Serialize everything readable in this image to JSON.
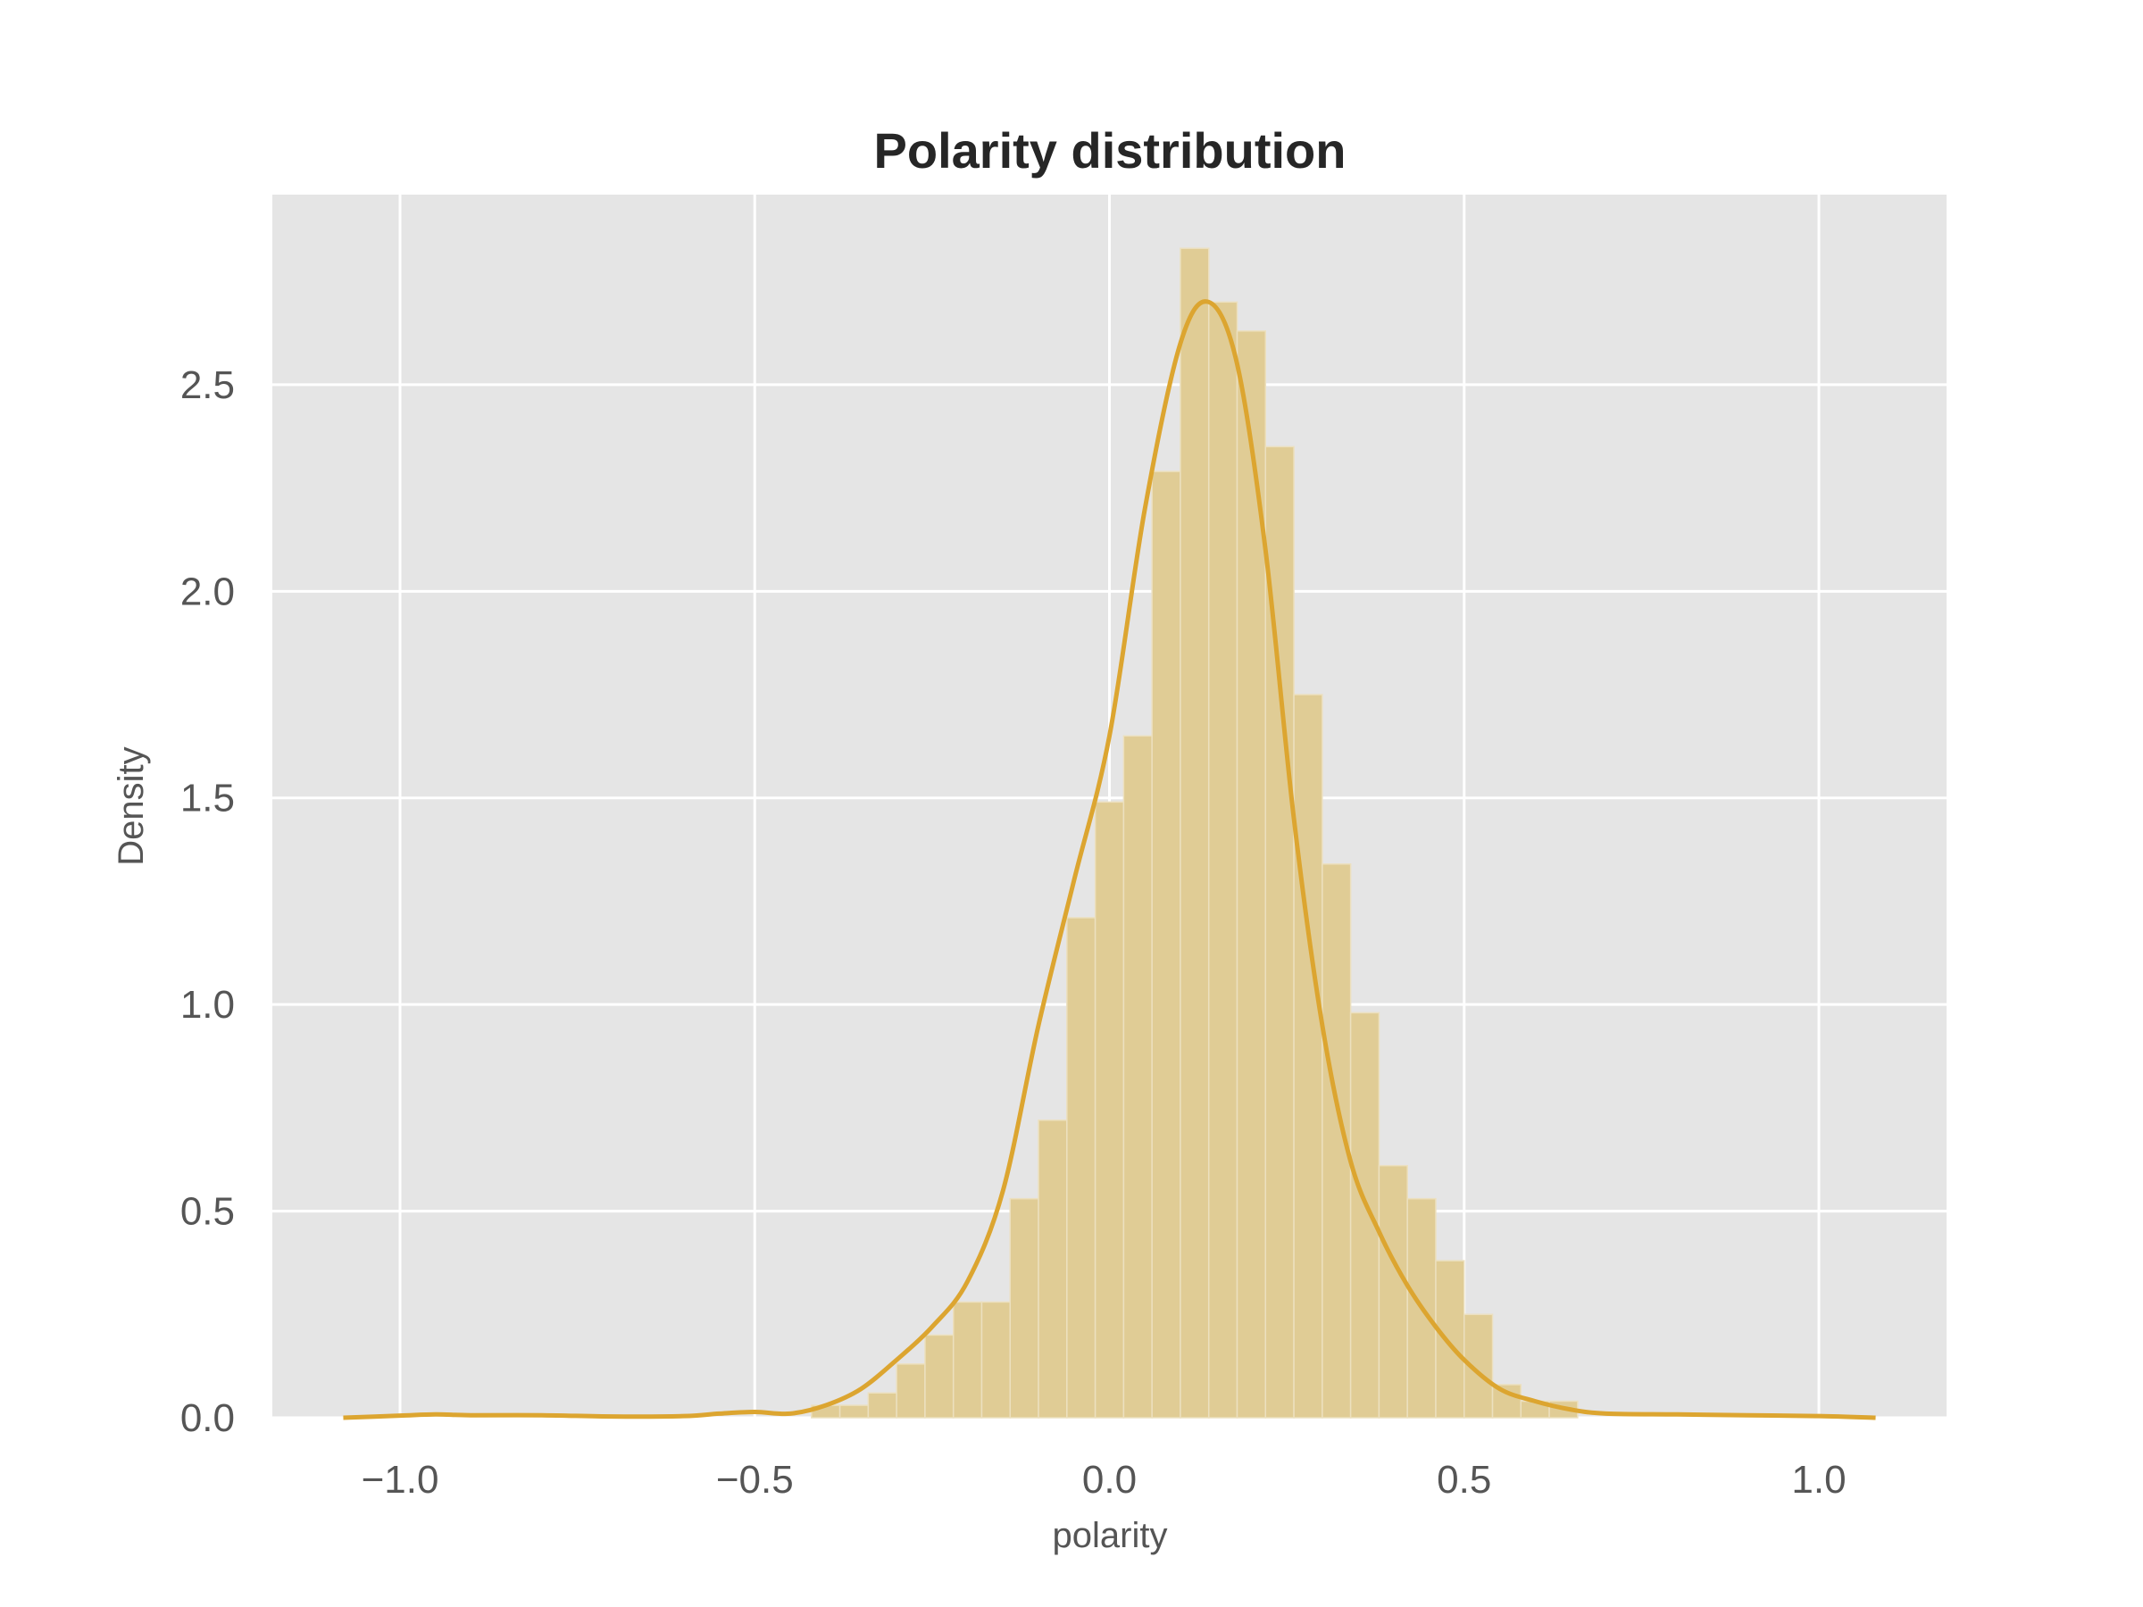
{
  "chart_data": {
    "type": "histogram",
    "title": "Polarity distribution",
    "xlabel": "polarity",
    "ylabel": "Density",
    "xlim": [
      -1.18,
      1.18
    ],
    "ylim": [
      0,
      2.96
    ],
    "xticks": [
      -1.0,
      -0.5,
      0.0,
      0.5,
      1.0
    ],
    "xtick_labels": [
      "−1.0",
      "−0.5",
      "0.0",
      "0.5",
      "1.0"
    ],
    "yticks": [
      0.0,
      0.5,
      1.0,
      1.5,
      2.0,
      2.5
    ],
    "ytick_labels": [
      "0.0",
      "0.5",
      "1.0",
      "1.5",
      "2.0",
      "2.5"
    ],
    "grid": true,
    "background_color": "#e5e5e5",
    "bar_color": "#e0cc95",
    "kde_color": "#dca530",
    "bins": {
      "start": -0.42,
      "width": 0.04,
      "densities": [
        0.03,
        0.03,
        0.06,
        0.13,
        0.2,
        0.28,
        0.28,
        0.53,
        0.72,
        1.21,
        1.49,
        1.65,
        2.29,
        2.83,
        2.7,
        2.63,
        2.35,
        1.75,
        1.34,
        0.98,
        0.61,
        0.53,
        0.38,
        0.25,
        0.08,
        0.04,
        0.04
      ]
    },
    "kde": {
      "x": [
        -1.08,
        -1.0,
        -0.95,
        -0.9,
        -0.8,
        -0.7,
        -0.6,
        -0.55,
        -0.5,
        -0.45,
        -0.4,
        -0.35,
        -0.3,
        -0.25,
        -0.2,
        -0.15,
        -0.1,
        -0.05,
        0.0,
        0.05,
        0.1,
        0.14,
        0.18,
        0.22,
        0.26,
        0.3,
        0.34,
        0.38,
        0.42,
        0.46,
        0.5,
        0.55,
        0.6,
        0.65,
        0.7,
        0.8,
        0.9,
        1.0,
        1.08
      ],
      "y": [
        0.0,
        0.005,
        0.008,
        0.006,
        0.006,
        0.003,
        0.004,
        0.01,
        0.014,
        0.01,
        0.03,
        0.07,
        0.14,
        0.22,
        0.33,
        0.55,
        0.95,
        1.3,
        1.65,
        2.2,
        2.6,
        2.7,
        2.55,
        2.1,
        1.45,
        0.95,
        0.62,
        0.45,
        0.32,
        0.22,
        0.14,
        0.07,
        0.04,
        0.02,
        0.01,
        0.008,
        0.006,
        0.004,
        0.0
      ]
    }
  }
}
